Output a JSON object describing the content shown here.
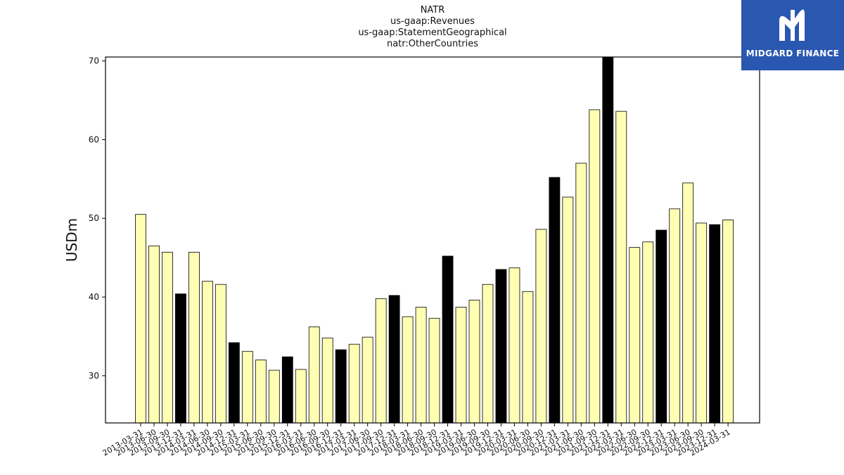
{
  "chart_data": {
    "type": "bar",
    "title_lines": [
      "NATR",
      "us-gaap:Revenues",
      "us-gaap:StatementGeographical",
      "natr:OtherCountries"
    ],
    "ylabel": "USDm",
    "xlabel": "",
    "ylim": [
      24,
      70.5
    ],
    "yticks": [
      30,
      40,
      50,
      60,
      70
    ],
    "categories": [
      "2013-03-31",
      "2013-06-30",
      "2013-09-30",
      "2013-12-31",
      "2014-03-31",
      "2014-06-30",
      "2014-09-30",
      "2014-12-31",
      "2015-03-31",
      "2015-06-30",
      "2015-09-30",
      "2015-12-31",
      "2016-03-31",
      "2016-06-30",
      "2016-09-30",
      "2016-12-31",
      "2017-03-31",
      "2017-06-30",
      "2017-09-30",
      "2017-12-31",
      "2018-03-31",
      "2018-06-30",
      "2018-09-30",
      "2018-12-31",
      "2019-03-31",
      "2019-06-30",
      "2019-09-30",
      "2019-12-31",
      "2020-03-31",
      "2020-06-30",
      "2020-09-30",
      "2020-12-31",
      "2021-03-31",
      "2021-06-30",
      "2021-09-30",
      "2021-12-31",
      "2022-03-31",
      "2022-06-30",
      "2022-09-30",
      "2022-12-31",
      "2023-03-31",
      "2023-06-30",
      "2023-09-30",
      "2023-12-31",
      "2024-03-31"
    ],
    "values": [
      50.5,
      46.5,
      45.7,
      40.4,
      45.7,
      42.0,
      41.6,
      34.2,
      33.1,
      32.0,
      30.7,
      32.4,
      30.8,
      36.2,
      34.8,
      33.3,
      34.0,
      34.9,
      39.8,
      40.2,
      37.5,
      38.7,
      37.3,
      45.2,
      38.7,
      39.6,
      41.6,
      43.5,
      43.7,
      40.7,
      48.6,
      55.2,
      52.7,
      57.0,
      63.8,
      70.5,
      63.6,
      46.3,
      47.0,
      48.5,
      51.2,
      54.5,
      49.4,
      49.2,
      49.8
    ],
    "highlight_every": 4,
    "highlight_offset": 3,
    "colors": {
      "bar": "#ffffb3",
      "highlight": "#000000",
      "edge": "#000000"
    },
    "grid": false,
    "legend": "none"
  },
  "logo": {
    "text": "MIDGARD FINANCE",
    "background": "#2a57b0"
  }
}
